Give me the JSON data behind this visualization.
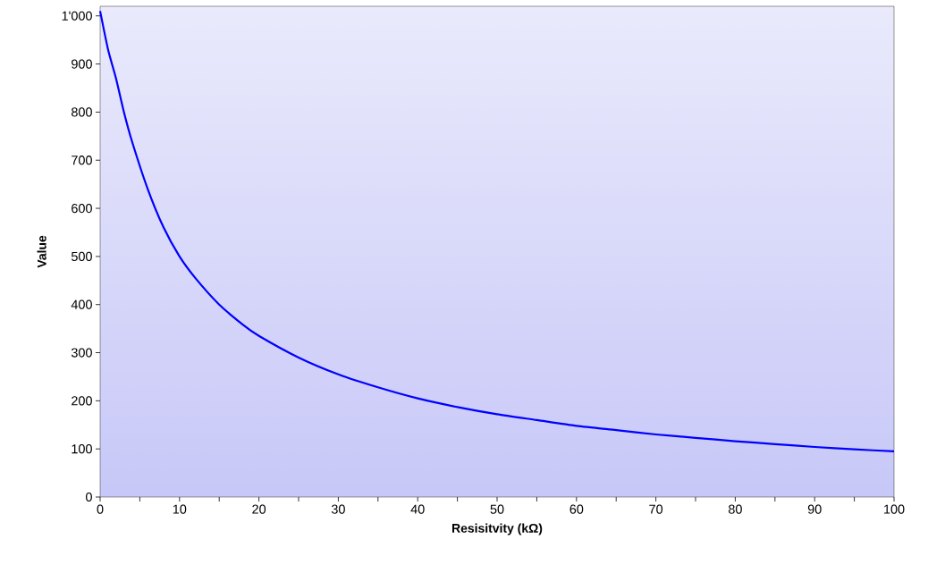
{
  "chart_data": {
    "type": "line",
    "xlabel": "Resisitvity (kΩ)",
    "ylabel": "Value",
    "x": [
      0,
      1,
      2,
      3,
      4,
      6,
      8,
      10,
      12,
      15,
      18,
      20,
      25,
      30,
      35,
      40,
      45,
      50,
      55,
      60,
      65,
      70,
      75,
      80,
      85,
      90,
      95,
      100
    ],
    "series": [
      {
        "color": "#0000ff",
        "values": [
          1010,
          930,
          870,
          800,
          740,
          640,
          560,
          500,
          455,
          400,
          358,
          335,
          290,
          255,
          228,
          205,
          187,
          172,
          160,
          148,
          139,
          130,
          123,
          116,
          110,
          104,
          99,
          95
        ]
      }
    ],
    "xlim": [
      0,
      100
    ],
    "ylim": [
      0,
      1020
    ],
    "xticks": [
      0,
      {
        "value": 5,
        "label": null
      },
      10,
      {
        "value": 15,
        "label": null
      },
      20,
      {
        "value": 25,
        "label": null
      },
      30,
      {
        "value": 35,
        "label": null
      },
      40,
      {
        "value": 45,
        "label": null
      },
      50,
      {
        "value": 55,
        "label": null
      },
      60,
      {
        "value": 65,
        "label": null
      },
      70,
      {
        "value": 75,
        "label": null
      },
      80,
      {
        "value": 85,
        "label": null
      },
      90,
      {
        "value": 95,
        "label": null
      },
      100
    ],
    "yticks": [
      0,
      100,
      200,
      300,
      400,
      500,
      600,
      700,
      800,
      900,
      {
        "value": 1000,
        "label": "1'000"
      }
    ],
    "marker": "none",
    "line_style": "solid"
  }
}
